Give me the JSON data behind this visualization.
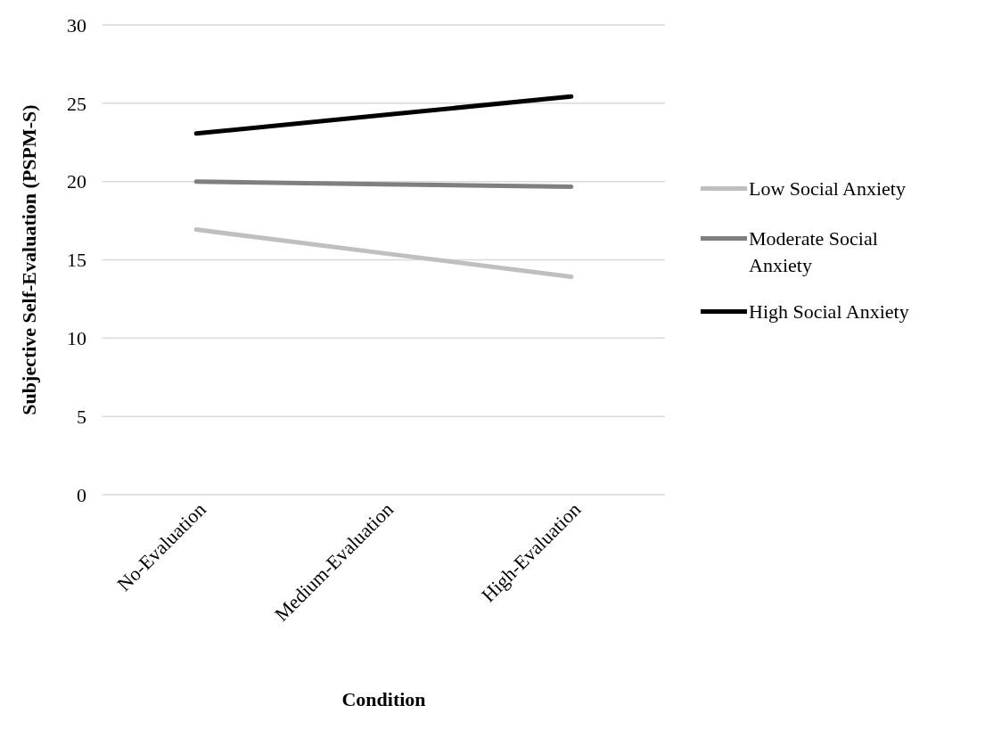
{
  "chart_data": {
    "type": "line",
    "xlabel": "Condition",
    "ylabel": "Subjective Self-Evaluation (PSPM-S)",
    "categories": [
      "No-Evaluation",
      "Medium-Evaluation",
      "High-Evaluation"
    ],
    "series": [
      {
        "name": "Low Social Anxiety",
        "color": "#bfbfbf",
        "values": [
          16.93,
          15.42,
          13.92
        ]
      },
      {
        "name": "Moderate Social Anxiety",
        "color": "#7f7f7f",
        "values": [
          20.0,
          19.83,
          19.67
        ]
      },
      {
        "name": "High Social Anxiety",
        "color": "#000000",
        "values": [
          23.07,
          24.25,
          25.43
        ]
      }
    ],
    "ylim": [
      0,
      30
    ],
    "yticks": [
      0,
      5,
      10,
      15,
      20,
      25,
      30
    ],
    "grid": "y",
    "legend": "right",
    "marker": "none",
    "line_style": "solid"
  }
}
